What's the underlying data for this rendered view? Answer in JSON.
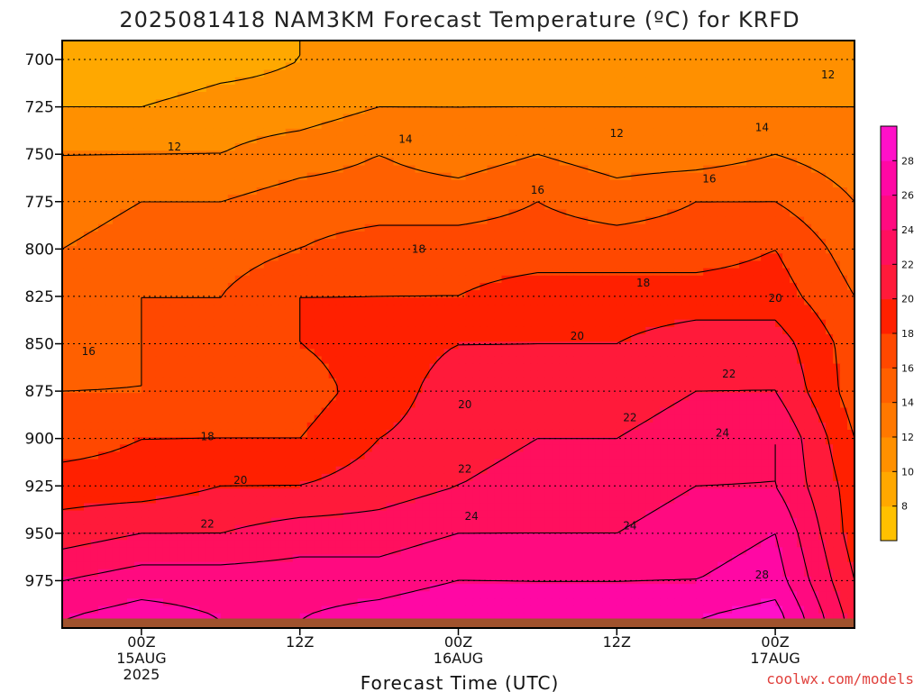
{
  "title": "2025081418 NAM3KM Forecast Temperature (ºC) for KRFD",
  "credit": "coolwx.com/models",
  "colors": {
    "background": "#ffffff",
    "ground": "#a0522d",
    "contour_line": "#000000",
    "credit": "#e0403c"
  },
  "chart_data": {
    "type": "heatmap",
    "title": "2025081418 NAM3KM Forecast Temperature (ºC) for KRFD",
    "xlabel": "Forecast Time (UTC)",
    "ylabel": "",
    "y_scale": "pressure (hPa), inverted",
    "ylim": [
      1000,
      690
    ],
    "y_ticks": [
      "700",
      "725",
      "750",
      "775",
      "800",
      "825",
      "850",
      "875",
      "900",
      "925",
      "950",
      "975"
    ],
    "x_ticks": [
      {
        "lines": [
          "00Z",
          "15AUG",
          "2025"
        ],
        "hours": 6
      },
      {
        "lines": [
          "12Z"
        ],
        "hours": 18
      },
      {
        "lines": [
          "00Z",
          "16AUG"
        ],
        "hours": 30
      },
      {
        "lines": [
          "12Z"
        ],
        "hours": 42
      },
      {
        "lines": [
          "00Z",
          "17AUG"
        ],
        "hours": 54
      }
    ],
    "xlim_hours": [
      0,
      60
    ],
    "contour_interval": 2,
    "times_hours": [
      0,
      6,
      12,
      18,
      24,
      30,
      36,
      42,
      48,
      54,
      60
    ],
    "levels_hpa": [
      700,
      725,
      750,
      775,
      800,
      825,
      850,
      875,
      900,
      925,
      950,
      975,
      995
    ],
    "temperature_c": [
      [
        9,
        8,
        9,
        10,
        10,
        10,
        11,
        11,
        11,
        11,
        11
      ],
      [
        10,
        10,
        11,
        11,
        12,
        12,
        12,
        12,
        12,
        12,
        12
      ],
      [
        12,
        12,
        12,
        13,
        14,
        13,
        14,
        13,
        13,
        14,
        13
      ],
      [
        13,
        14,
        14,
        15,
        15,
        15,
        16,
        15,
        16,
        16,
        14
      ],
      [
        14,
        15,
        15,
        16,
        17,
        17,
        17,
        17,
        17,
        18,
        15
      ],
      [
        15,
        16,
        16,
        18,
        18,
        18,
        19,
        19,
        19,
        19,
        16
      ],
      [
        15,
        16,
        16,
        18,
        19,
        20,
        20,
        20,
        21,
        21,
        17
      ],
      [
        16,
        16,
        17,
        17,
        19,
        21,
        21,
        21,
        22,
        22,
        17
      ],
      [
        17,
        18,
        18,
        18,
        20,
        21,
        22,
        22,
        23,
        24,
        18
      ],
      [
        19,
        19,
        20,
        20,
        21,
        22,
        23,
        23,
        24,
        24,
        19
      ],
      [
        21,
        22,
        22,
        23,
        23,
        24,
        24,
        24,
        25,
        26,
        19
      ],
      [
        24,
        25,
        25,
        25,
        25,
        26,
        26,
        26,
        26,
        27,
        20
      ],
      [
        26,
        27,
        26,
        26,
        27,
        28,
        27,
        27,
        28,
        29,
        21
      ]
    ],
    "contour_labels": [
      {
        "text": "12",
        "hours": 8.5,
        "hpa": 746
      },
      {
        "text": "14",
        "hours": 26,
        "hpa": 742
      },
      {
        "text": "12",
        "hours": 42,
        "hpa": 739
      },
      {
        "text": "14",
        "hours": 53,
        "hpa": 736
      },
      {
        "text": "12",
        "hours": 58,
        "hpa": 708
      },
      {
        "text": "16",
        "hours": 36,
        "hpa": 769
      },
      {
        "text": "16",
        "hours": 49,
        "hpa": 763
      },
      {
        "text": "18",
        "hours": 27,
        "hpa": 800
      },
      {
        "text": "16",
        "hours": 2,
        "hpa": 854
      },
      {
        "text": "18",
        "hours": 44,
        "hpa": 818
      },
      {
        "text": "20",
        "hours": 54,
        "hpa": 826
      },
      {
        "text": "20",
        "hours": 39,
        "hpa": 846
      },
      {
        "text": "22",
        "hours": 50.5,
        "hpa": 866
      },
      {
        "text": "20",
        "hours": 30.5,
        "hpa": 882
      },
      {
        "text": "18",
        "hours": 11,
        "hpa": 899
      },
      {
        "text": "22",
        "hours": 43,
        "hpa": 889
      },
      {
        "text": "24",
        "hours": 50,
        "hpa": 897
      },
      {
        "text": "22",
        "hours": 30.5,
        "hpa": 916
      },
      {
        "text": "20",
        "hours": 13.5,
        "hpa": 922
      },
      {
        "text": "24",
        "hours": 31,
        "hpa": 941
      },
      {
        "text": "24",
        "hours": 43,
        "hpa": 946
      },
      {
        "text": "22",
        "hours": 11,
        "hpa": 945
      },
      {
        "text": "28",
        "hours": 53,
        "hpa": 972
      }
    ],
    "colorbar": {
      "ticks": [
        "8",
        "10",
        "12",
        "14",
        "16",
        "18",
        "20",
        "22",
        "24",
        "26",
        "28"
      ],
      "bins": [
        {
          "min": 6,
          "max": 8,
          "color": "#ffc100"
        },
        {
          "min": 8,
          "max": 10,
          "color": "#ffa800"
        },
        {
          "min": 10,
          "max": 12,
          "color": "#ff9000"
        },
        {
          "min": 12,
          "max": 14,
          "color": "#ff7800"
        },
        {
          "min": 14,
          "max": 16,
          "color": "#ff6000"
        },
        {
          "min": 16,
          "max": 18,
          "color": "#ff4800"
        },
        {
          "min": 18,
          "max": 20,
          "color": "#ff2000"
        },
        {
          "min": 20,
          "max": 22,
          "color": "#ff1a3a"
        },
        {
          "min": 22,
          "max": 24,
          "color": "#ff0f5e"
        },
        {
          "min": 24,
          "max": 26,
          "color": "#ff0a80"
        },
        {
          "min": 26,
          "max": 28,
          "color": "#ff08a4"
        },
        {
          "min": 28,
          "max": 30,
          "color": "#ff10c8"
        }
      ]
    },
    "ground": {
      "hpa_top": 995,
      "color": "#a0522d"
    }
  }
}
